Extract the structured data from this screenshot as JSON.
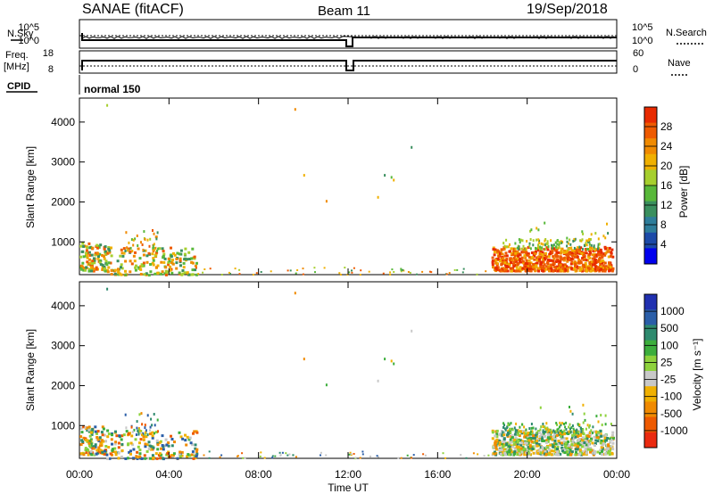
{
  "header": {
    "title": "SANAE (fitACF)",
    "beam": "Beam 11",
    "date": "19/Sep/2018"
  },
  "status_panels": {
    "nsky": {
      "label": "N.Sky",
      "scale_top": "10^5",
      "scale_bottom": "10^0"
    },
    "nsearch": {
      "label": "N.Search",
      "scale_top": "10^5",
      "scale_bottom": "10^0"
    },
    "freq": {
      "label_line1": "Freq.",
      "label_line2": "[MHz]",
      "ticks": [
        "18",
        "8"
      ]
    },
    "nave": {
      "label": "Nave",
      "ticks": [
        "60",
        "0"
      ]
    },
    "cpid": {
      "label": "CPID",
      "mode": "normal 150"
    }
  },
  "colors": {
    "power_scale": [
      "#0000ee",
      "#1c4aa8",
      "#2e7d9a",
      "#3a8f5e",
      "#58b83a",
      "#a6cf2e",
      "#f0b000",
      "#f08a00",
      "#ee5a00",
      "#e82a00"
    ],
    "velocity_scale": [
      "#2030b0",
      "#2a5ea8",
      "#2e8a6e",
      "#3cae3c",
      "#8ed23c",
      "#c8c8c8",
      "#f0b000",
      "#f08a00",
      "#ee5a00",
      "#ea2a10"
    ]
  },
  "chart_data": [
    {
      "type": "heatmap",
      "name": "power",
      "ylabel": "Slant Range [km]",
      "xlabel": "",
      "xlim": [
        0,
        24
      ],
      "ylim": [
        180,
        4600
      ],
      "yticks": [
        1000,
        2000,
        3000,
        4000
      ],
      "colorbar": {
        "label": "Power [dB]",
        "ticks": [
          4,
          8,
          12,
          16,
          20,
          24,
          28
        ],
        "range": [
          0,
          32
        ]
      },
      "regions": [
        {
          "t": [
            0.0,
            5.2
          ],
          "r": [
            180,
            1350
          ],
          "level": "low"
        },
        {
          "t": [
            18.4,
            23.8
          ],
          "r": [
            250,
            1050
          ],
          "level": "high"
        }
      ]
    },
    {
      "type": "heatmap",
      "name": "velocity",
      "ylabel": "Slant Range [km]",
      "xlabel": "Time UT",
      "xlim": [
        0,
        24
      ],
      "ylim": [
        180,
        4600
      ],
      "xticks": [
        "00:00",
        "04:00",
        "08:00",
        "12:00",
        "16:00",
        "20:00",
        "00:00"
      ],
      "yticks": [
        1000,
        2000,
        3000,
        4000
      ],
      "colorbar": {
        "label": "Velocity [m s⁻¹]",
        "ticks": [
          1000,
          500,
          100,
          25,
          -25,
          -100,
          -500,
          -1000
        ]
      },
      "regions": [
        {
          "t": [
            0.0,
            5.2
          ],
          "r": [
            180,
            1350
          ],
          "level": "mixed"
        },
        {
          "t": [
            18.4,
            23.8
          ],
          "r": [
            250,
            1050
          ],
          "level": "near-zero"
        }
      ]
    }
  ]
}
